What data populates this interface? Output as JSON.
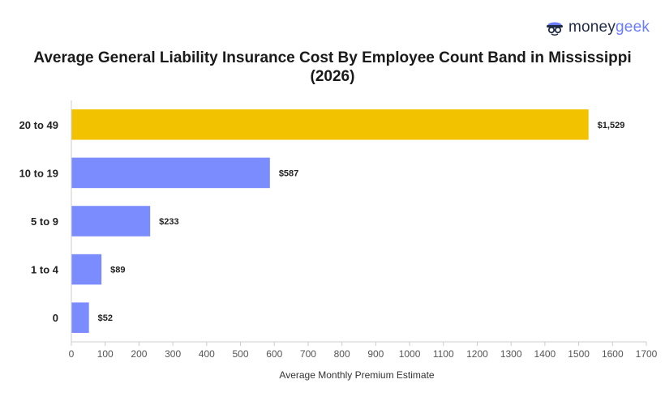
{
  "brand": {
    "money": "money",
    "geek": "geek",
    "icon": "geek-mascot-icon"
  },
  "chart_data": {
    "type": "bar",
    "orientation": "horizontal",
    "title": "Average General Liability Insurance Cost By Employee Count Band in Mississippi (2026)",
    "xlabel": "Average Monthly Premium Estimate",
    "ylabel": "",
    "categories": [
      "20 to 49",
      "10 to 19",
      "5 to 9",
      "1 to 4",
      "0"
    ],
    "values": [
      1529,
      587,
      233,
      89,
      52
    ],
    "value_labels": [
      "$1,529",
      "$587",
      "$233",
      "$89",
      "$52"
    ],
    "xlim": [
      0,
      1700
    ],
    "xticks": [
      0,
      100,
      200,
      300,
      400,
      500,
      600,
      700,
      800,
      900,
      1000,
      1100,
      1200,
      1300,
      1400,
      1500,
      1600,
      1700
    ],
    "highlight_category": "20 to 49",
    "colors": {
      "highlight": "#f2c200",
      "default": "#7b8cff",
      "axis": "#cccccc",
      "text": "#222222"
    },
    "grid": false
  }
}
